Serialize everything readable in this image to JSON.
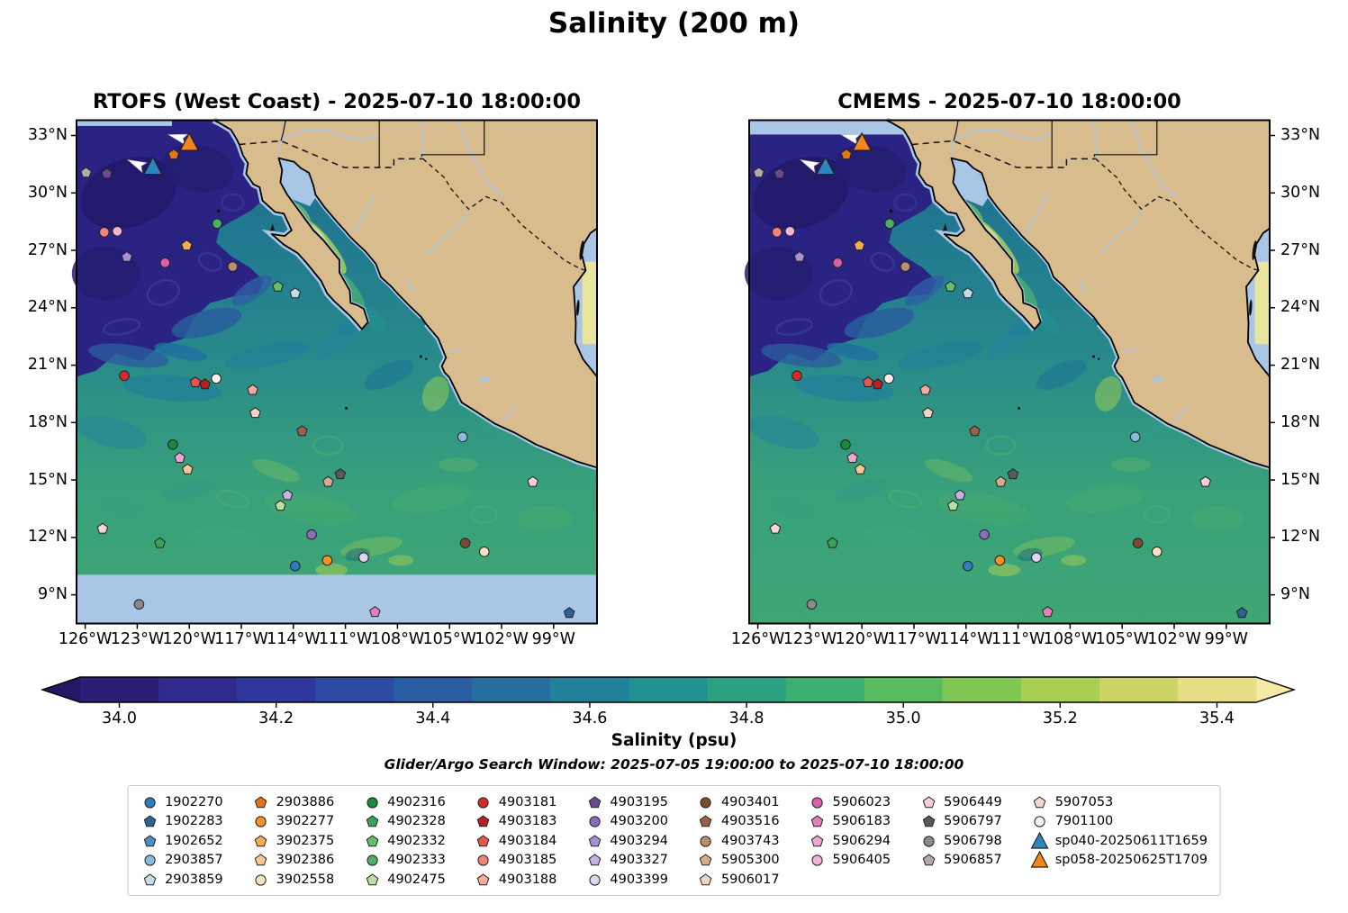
{
  "title": "Salinity (200 m)",
  "panels": [
    {
      "id": "rtofs",
      "title": "RTOFS (West Coast) - 2025-07-10 18:00:00"
    },
    {
      "id": "cmems",
      "title": "CMEMS - 2025-07-10 18:00:00"
    }
  ],
  "axes": {
    "lat_ticks": [
      "33°N",
      "30°N",
      "27°N",
      "24°N",
      "21°N",
      "18°N",
      "15°N",
      "12°N",
      "9°N"
    ],
    "lat_values": [
      33,
      30,
      27,
      24,
      21,
      18,
      15,
      12,
      9
    ],
    "lon_ticks": [
      "126°W",
      "123°W",
      "120°W",
      "117°W",
      "114°W",
      "111°W",
      "108°W",
      "105°W",
      "102°W",
      "99°W"
    ],
    "lon_values": [
      -126,
      -123,
      -120,
      -117,
      -114,
      -111,
      -108,
      -105,
      -102,
      -99
    ]
  },
  "colorbar": {
    "label": "Salinity (psu)",
    "ticks": [
      "34.0",
      "34.2",
      "34.4",
      "34.6",
      "34.8",
      "35.0",
      "35.2",
      "35.4"
    ],
    "tick_values": [
      34.0,
      34.2,
      34.4,
      34.6,
      34.8,
      35.0,
      35.2,
      35.4
    ],
    "vmin": 33.95,
    "vmax": 35.45,
    "under_color": "#231864",
    "over_color": "#f4eaa3",
    "segment_colors": [
      "#2a1e75",
      "#2f2a8c",
      "#30379c",
      "#2c4aa3",
      "#285ca3",
      "#266e9f",
      "#23809b",
      "#239192",
      "#2ba182",
      "#3caf71",
      "#59bb60",
      "#80c754",
      "#a8ce53",
      "#ccd468",
      "#e6dd85"
    ]
  },
  "search_window": "Glider/Argo Search Window: 2025-07-05 19:00:00 to 2025-07-10 18:00:00",
  "map_colors": {
    "land": "#d9bc8e",
    "coastline": "#000000",
    "shallow_mask": "#a9c6e6",
    "river": "#a9c6e6",
    "deep_north": "#2b2384",
    "deep_core": "#221a6b",
    "mid_teal": "#27888c",
    "south_green": "#3fa673",
    "gulf_high_salinity": "#dde07e"
  },
  "legend": {
    "columns": [
      [
        {
          "id": "1902270",
          "shape": "circle",
          "color": "#2e7ebc"
        },
        {
          "id": "1902283",
          "shape": "pentagon",
          "color": "#2a6496"
        },
        {
          "id": "1902652",
          "shape": "pentagon",
          "color": "#4a8ec2"
        },
        {
          "id": "2903857",
          "shape": "circle",
          "color": "#85bcdd"
        },
        {
          "id": "2903859",
          "shape": "pentagon",
          "color": "#c3dcec"
        }
      ],
      [
        {
          "id": "2903886",
          "shape": "pentagon",
          "color": "#e2751c"
        },
        {
          "id": "3902277",
          "shape": "circle",
          "color": "#f59325"
        },
        {
          "id": "3902375",
          "shape": "pentagon",
          "color": "#f8ab55"
        },
        {
          "id": "3902386",
          "shape": "pentagon",
          "color": "#fac88e"
        },
        {
          "id": "3902558",
          "shape": "circle",
          "color": "#fce3c0"
        }
      ],
      [
        {
          "id": "4902316",
          "shape": "circle",
          "color": "#1a8a3c"
        },
        {
          "id": "4902328",
          "shape": "pentagon",
          "color": "#39a457"
        },
        {
          "id": "4902332",
          "shape": "pentagon",
          "color": "#68bd6d"
        },
        {
          "id": "4902333",
          "shape": "circle",
          "color": "#4bb065"
        },
        {
          "id": "4902475",
          "shape": "pentagon",
          "color": "#b7e0a8"
        }
      ],
      [
        {
          "id": "4903181",
          "shape": "circle",
          "color": "#d62a28"
        },
        {
          "id": "4903183",
          "shape": "pentagon",
          "color": "#b22222"
        },
        {
          "id": "4903184",
          "shape": "pentagon",
          "color": "#e65550"
        },
        {
          "id": "4903185",
          "shape": "circle",
          "color": "#f08478"
        },
        {
          "id": "4903188",
          "shape": "pentagon",
          "color": "#f6aa9e"
        }
      ],
      [
        {
          "id": "4903195",
          "shape": "pentagon",
          "color": "#6a4a97"
        },
        {
          "id": "4903200",
          "shape": "circle",
          "color": "#8d6cbf"
        },
        {
          "id": "4903294",
          "shape": "pentagon",
          "color": "#a98fd4"
        },
        {
          "id": "4903327",
          "shape": "pentagon",
          "color": "#c6b1e4"
        },
        {
          "id": "4903399",
          "shape": "circle",
          "color": "#e0d5f0"
        }
      ],
      [
        {
          "id": "4903401",
          "shape": "circle",
          "color": "#7c4a33"
        },
        {
          "id": "4903516",
          "shape": "pentagon",
          "color": "#99614b"
        },
        {
          "id": "4903743",
          "shape": "circle",
          "color": "#bb8e74"
        },
        {
          "id": "5905300",
          "shape": "pentagon",
          "color": "#d6ab90"
        },
        {
          "id": "5906017",
          "shape": "pentagon",
          "color": "#efd6c3"
        }
      ],
      [
        {
          "id": "5906023",
          "shape": "circle",
          "color": "#d95fa9"
        },
        {
          "id": "5906183",
          "shape": "pentagon",
          "color": "#e281ba"
        },
        {
          "id": "5906294",
          "shape": "pentagon",
          "color": "#eda6cf"
        },
        {
          "id": "5906405",
          "shape": "circle",
          "color": "#f2b3d6"
        }
      ],
      [
        {
          "id": "5906449",
          "shape": "pentagon",
          "color": "#f8cce1"
        },
        {
          "id": "5906797",
          "shape": "pentagon",
          "color": "#595959"
        },
        {
          "id": "5906798",
          "shape": "circle",
          "color": "#8a8a8a"
        },
        {
          "id": "5906857",
          "shape": "pentagon",
          "color": "#b5aaaa"
        }
      ],
      [
        {
          "id": "5907053",
          "shape": "pentagon",
          "color": "#f2d8d3"
        },
        {
          "id": "7901100",
          "shape": "circle",
          "color": "#fdf2ec"
        },
        {
          "id": "sp040-20250611T1659",
          "shape": "triangle",
          "color": "#2e86c1"
        },
        {
          "id": "sp058-20250625T1709",
          "shape": "triangle",
          "color": "#f5861d"
        }
      ]
    ]
  },
  "chart_data": {
    "type": "map-scatter",
    "field": "salinity_psu_at_200m",
    "extent": {
      "lon_min": -126.5,
      "lon_max": -96.5,
      "lat_min": 7.5,
      "lat_max": 33.8
    },
    "markers": [
      {
        "id": "sp040-20250611T1659",
        "lon": -122.1,
        "lat": 31.35
      },
      {
        "id": "sp058-20250625T1709",
        "lon": -120.0,
        "lat": 32.6
      },
      {
        "id": "2903886",
        "lon": -120.9,
        "lat": 32.0
      },
      {
        "id": "4903195",
        "lon": -124.75,
        "lat": 31.0
      },
      {
        "id": "5906857",
        "lon": -125.95,
        "lat": 31.05
      },
      {
        "id": "4903185",
        "lon": -124.9,
        "lat": 27.95
      },
      {
        "id": "5906405",
        "lon": -124.15,
        "lat": 28.0
      },
      {
        "id": "4902333",
        "lon": -118.4,
        "lat": 28.4
      },
      {
        "id": "4903294",
        "lon": -123.6,
        "lat": 26.65
      },
      {
        "id": "5906023",
        "lon": -121.4,
        "lat": 26.35
      },
      {
        "id": "3902375",
        "lon": -120.15,
        "lat": 27.25
      },
      {
        "id": "4903743",
        "lon": -117.5,
        "lat": 26.15
      },
      {
        "id": "4902332",
        "lon": -114.9,
        "lat": 25.1
      },
      {
        "id": "2903859",
        "lon": -113.9,
        "lat": 24.75
      },
      {
        "id": "4903181",
        "lon": -123.75,
        "lat": 20.45
      },
      {
        "id": "4903184",
        "lon": -119.65,
        "lat": 20.1
      },
      {
        "id": "4903183",
        "lon": -119.1,
        "lat": 20.0
      },
      {
        "id": "7901100",
        "lon": -118.45,
        "lat": 20.3
      },
      {
        "id": "4903188",
        "lon": -116.35,
        "lat": 19.7
      },
      {
        "id": "5906017",
        "lon": -116.2,
        "lat": 18.5
      },
      {
        "id": "4903516",
        "lon": -113.5,
        "lat": 17.55
      },
      {
        "id": "4902316",
        "lon": -120.95,
        "lat": 16.85
      },
      {
        "id": "5906294",
        "lon": -120.55,
        "lat": 16.15
      },
      {
        "id": "3902386",
        "lon": -120.1,
        "lat": 15.55
      },
      {
        "id": "5905300",
        "lon": -112.0,
        "lat": 14.9
      },
      {
        "id": "5906797",
        "lon": -111.3,
        "lat": 15.3
      },
      {
        "id": "4903327",
        "lon": -114.35,
        "lat": 14.2
      },
      {
        "id": "4902475",
        "lon": -114.75,
        "lat": 13.65
      },
      {
        "id": "5907053",
        "lon": -125.0,
        "lat": 12.45
      },
      {
        "id": "4902328",
        "lon": -121.7,
        "lat": 11.7
      },
      {
        "id": "4903200",
        "lon": -112.95,
        "lat": 12.15
      },
      {
        "id": "1902270",
        "lon": -113.9,
        "lat": 10.5
      },
      {
        "id": "3902277",
        "lon": -112.05,
        "lat": 10.8
      },
      {
        "id": "4903399",
        "lon": -109.95,
        "lat": 10.95
      },
      {
        "id": "4903401",
        "lon": -104.1,
        "lat": 11.7
      },
      {
        "id": "3902558",
        "lon": -103.0,
        "lat": 11.25
      },
      {
        "id": "2903857",
        "lon": -104.25,
        "lat": 17.25
      },
      {
        "id": "5906449",
        "lon": -100.2,
        "lat": 14.9
      },
      {
        "id": "5906183",
        "lon": -109.3,
        "lat": 8.1
      },
      {
        "id": "5906798",
        "lon": -122.9,
        "lat": 8.5
      },
      {
        "id": "1902283",
        "lon": -98.1,
        "lat": 8.05
      }
    ]
  }
}
